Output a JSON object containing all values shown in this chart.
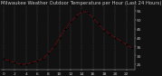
{
  "title": "Milwaukee Weather Outdoor Temperature per Hour (Last 24 Hours)",
  "hours": [
    0,
    1,
    2,
    3,
    4,
    5,
    6,
    7,
    8,
    9,
    10,
    11,
    12,
    13,
    14,
    15,
    16,
    17,
    18,
    19,
    20,
    21,
    22,
    23
  ],
  "temps": [
    28,
    27,
    26,
    25,
    25,
    26,
    27,
    28,
    31,
    35,
    40,
    45,
    49,
    52,
    55,
    54,
    51,
    48,
    44,
    42,
    40,
    38,
    36,
    34
  ],
  "line_color": "#ff0000",
  "marker_color": "#000000",
  "bg_color": "#111111",
  "plot_bg_color": "#111111",
  "grid_color": "#666666",
  "text_color": "#cccccc",
  "ylim": [
    22,
    58
  ],
  "yticks": [
    25,
    30,
    35,
    40,
    45,
    50,
    55
  ],
  "title_fontsize": 3.8,
  "tick_fontsize": 3.2,
  "xtick_step": 2
}
